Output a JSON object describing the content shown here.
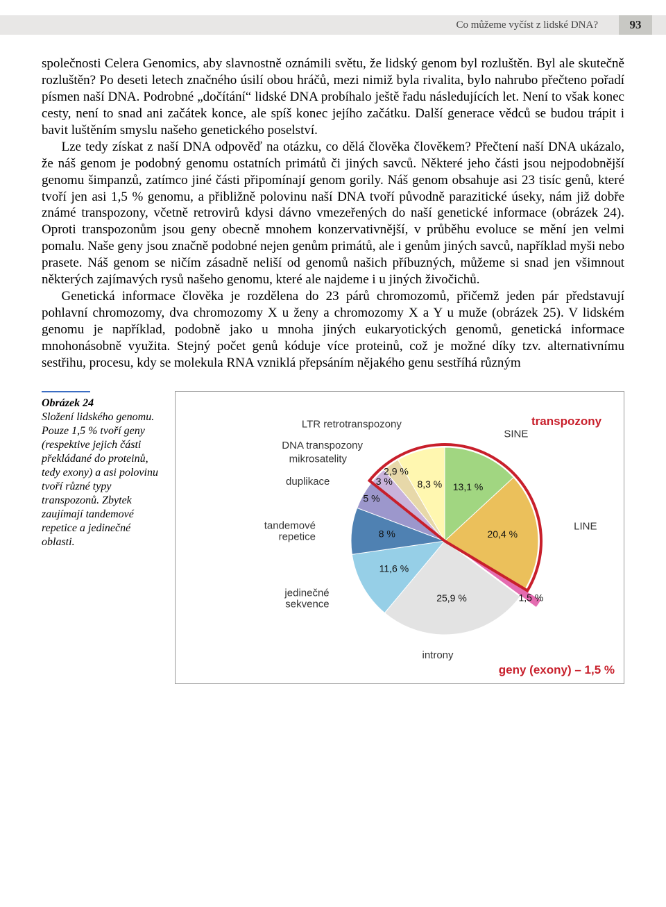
{
  "header": {
    "running_title": "Co můžeme vyčíst z lidské DNA?",
    "page_number": "93"
  },
  "body": {
    "p1": "společnosti Celera Genomics, aby slavnostně oznámili světu, že lidský genom byl rozluštěn. Byl ale skutečně rozluštěn? Po deseti letech značného úsilí obou hráčů, mezi nimiž byla rivalita, bylo nahrubo přečteno pořadí písmen naší DNA. Podrobné „dočítání“ lidské DNA probíhalo ještě řadu následujících let. Není to však konec cesty, není to snad ani začátek konce, ale spíš konec jejího začátku. Další generace vědců se budou trápit i bavit luštěním smyslu našeho genetického poselství.",
    "p2": "Lze tedy získat z naší DNA odpověď na otázku, co dělá člověka člověkem? Přečtení naší DNA ukázalo, že náš genom je podobný genomu ostatních primátů či jiných savců. Některé jeho části jsou nejpodobnější genomu šimpanzů, zatímco jiné části připomínají genom gorily. Náš genom obsahuje asi 23 tisíc genů, které tvoří jen asi 1,5 % genomu, a přibližně polovinu naší DNA tvoří původně parazitické úseky, nám již dobře známé transpozony, včetně retrovirů kdysi dávno vmezeřených do naší genetické informace (obrázek 24). Oproti transpozonům jsou geny obecně mnohem konzervativnější, v průběhu evoluce se mění jen velmi pomalu. Naše geny jsou značně podobné nejen genům primátů, ale i genům jiných savců, například myši nebo prasete. Náš genom se ničím zásadně neliší od genomů našich příbuzných, můžeme si snad jen všimnout některých zajímavých rysů našeho genomu, které ale najdeme i u jiných živočichů.",
    "p3": "Genetická informace člověka je rozdělena do 23 párů chromozomů, přičemž jeden pár představují pohlavní chromozomy, dva chromozomy X u ženy a chromozomy X a Y u muže (obrázek 25). V lidském genomu je například, podobně jako u mnoha jiných eukaryotických genomů, genetická informace mnohonásobně využita. Stejný počet genů kóduje více proteinů, což je možné díky tzv. alternativnímu sestřihu, procesu, kdy se molekula RNA vzniklá přepsáním nějakého genu sestříhá různým"
  },
  "figure": {
    "heading": "Obrázek 24",
    "caption": "Složení lidského genomu. Pouze 1,5 % tvoří geny (respektive jejich části překládané do proteinů, tedy exony) a asi polovinu tvoří různé typy transpozonů. Zbytek zaujímají tandemové repetice a jedinečné oblasti."
  },
  "chart": {
    "type": "pie",
    "background_color": "#ffffff",
    "transposon_group_label": "transpozony",
    "gene_label": "geny (exony) – 1,5 %",
    "slices": [
      {
        "label": "LTR retrotranspozony",
        "pct": "8,3 %",
        "value": 8.3,
        "color": "#fff7b0"
      },
      {
        "label": "SINE",
        "pct": "13,1 %",
        "value": 13.1,
        "color": "#a1d681"
      },
      {
        "label": "LINE",
        "pct": "20,4 %",
        "value": 20.4,
        "color": "#ebc05b"
      },
      {
        "label": "geny (exony)",
        "pct": "1,5 %",
        "value": 1.5,
        "color": "#e46bb0"
      },
      {
        "label": "introny",
        "pct": "25,9 %",
        "value": 25.9,
        "color": "#e3e3e3"
      },
      {
        "label": "jedinečné sekvence",
        "pct": "11,6 %",
        "value": 11.6,
        "color": "#96cfe7"
      },
      {
        "label": "tandemové repetice",
        "pct": "8 %",
        "value": 8.0,
        "color": "#4f81b2"
      },
      {
        "label": "duplikace",
        "pct": "5 %",
        "value": 5.0,
        "color": "#9c97cc"
      },
      {
        "label": "mikrosatelity",
        "pct": "3 %",
        "value": 3.0,
        "color": "#c9b3db"
      },
      {
        "label": "DNA transpozony",
        "pct": "2,9 %",
        "value": 2.9,
        "color": "#e7d8a9"
      }
    ],
    "highlight_outline_color": "#c81f2b",
    "label_fontsize": 15,
    "pct_fontsize": 14
  }
}
